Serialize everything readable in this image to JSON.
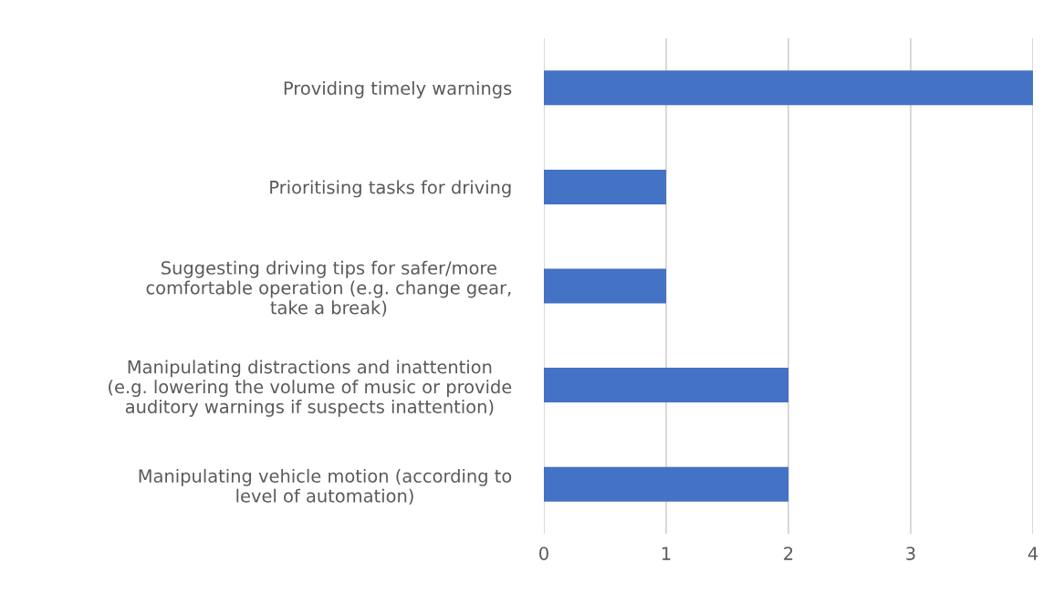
{
  "chart_data": {
    "type": "bar",
    "orientation": "horizontal",
    "categories": [
      "Providing timely warnings",
      "Prioritising tasks for driving",
      "Suggesting driving tips for safer/more\ncomfortable operation (e.g. change gear,\ntake a break)",
      "Manipulating distractions and inattention\n(e.g. lowering the volume of music or provide\nauditory warnings if suspects inattention)",
      "Manipulating vehicle motion (according to\nlevel of automation)"
    ],
    "values": [
      4,
      1,
      1,
      2,
      2
    ],
    "color": "#4472c4",
    "xlim": [
      0,
      4
    ],
    "xticks": [
      0,
      1,
      2,
      3,
      4
    ],
    "grid": "x",
    "legend": false
  }
}
